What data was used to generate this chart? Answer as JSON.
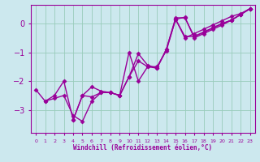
{
  "xlabel": "Windchill (Refroidissement éolien,°C)",
  "bg_color": "#cce8ee",
  "line_color": "#990099",
  "grid_color": "#99ccbb",
  "series": [
    {
      "x": [
        0,
        1,
        2,
        3,
        4,
        5,
        6,
        7,
        8,
        9,
        10,
        11,
        12,
        13,
        14,
        15,
        16,
        17,
        18,
        19,
        20,
        21,
        22,
        23
      ],
      "y": [
        -2.3,
        -2.7,
        -2.6,
        -2.5,
        -3.2,
        -3.4,
        -2.7,
        -2.4,
        -2.4,
        -2.5,
        -1.0,
        -2.0,
        -1.5,
        -1.55,
        -0.9,
        0.2,
        0.2,
        -0.45,
        -0.3,
        -0.15,
        0.0,
        0.12,
        0.32,
        0.52
      ]
    },
    {
      "x": [
        1,
        2,
        3,
        4,
        5,
        6,
        7,
        8,
        9,
        10,
        11,
        12,
        13,
        14,
        15,
        16,
        17,
        18,
        19,
        20,
        21,
        22,
        23
      ],
      "y": [
        -2.7,
        -2.5,
        -2.0,
        -3.35,
        -2.5,
        -2.55,
        -2.4,
        -2.4,
        -2.5,
        -1.85,
        -1.05,
        -1.45,
        -1.55,
        -0.9,
        0.15,
        -0.45,
        -0.45,
        -0.3,
        -0.15,
        0.0,
        0.12,
        0.32,
        0.52
      ]
    },
    {
      "x": [
        4,
        5,
        6,
        7,
        8,
        9,
        10,
        11,
        12,
        13,
        14,
        15,
        16,
        17,
        18,
        19,
        20,
        21,
        22,
        23
      ],
      "y": [
        -3.35,
        -2.5,
        -2.2,
        -2.35,
        -2.4,
        -2.5,
        -1.85,
        -1.3,
        -1.5,
        -1.5,
        -0.95,
        0.15,
        -0.5,
        -0.35,
        -0.2,
        -0.05,
        0.1,
        0.25,
        0.35,
        0.52
      ]
    },
    {
      "x": [
        15,
        16,
        17,
        18,
        19,
        20,
        21,
        22,
        23
      ],
      "y": [
        0.15,
        0.22,
        -0.5,
        -0.35,
        -0.2,
        -0.05,
        0.12,
        0.32,
        0.52
      ]
    }
  ],
  "ylim": [
    -3.8,
    0.65
  ],
  "xlim": [
    -0.5,
    23.5
  ],
  "yticks": [
    0,
    -1,
    -2,
    -3
  ],
  "xtick_labels": [
    "0",
    "1",
    "2",
    "3",
    "4",
    "5",
    "6",
    "7",
    "8",
    "9",
    "10",
    "11",
    "12",
    "13",
    "14",
    "15",
    "16",
    "17",
    "18",
    "19",
    "20",
    "21",
    "22",
    "23"
  ],
  "marker": "D",
  "markersize": 2.5,
  "linewidth": 1.0
}
